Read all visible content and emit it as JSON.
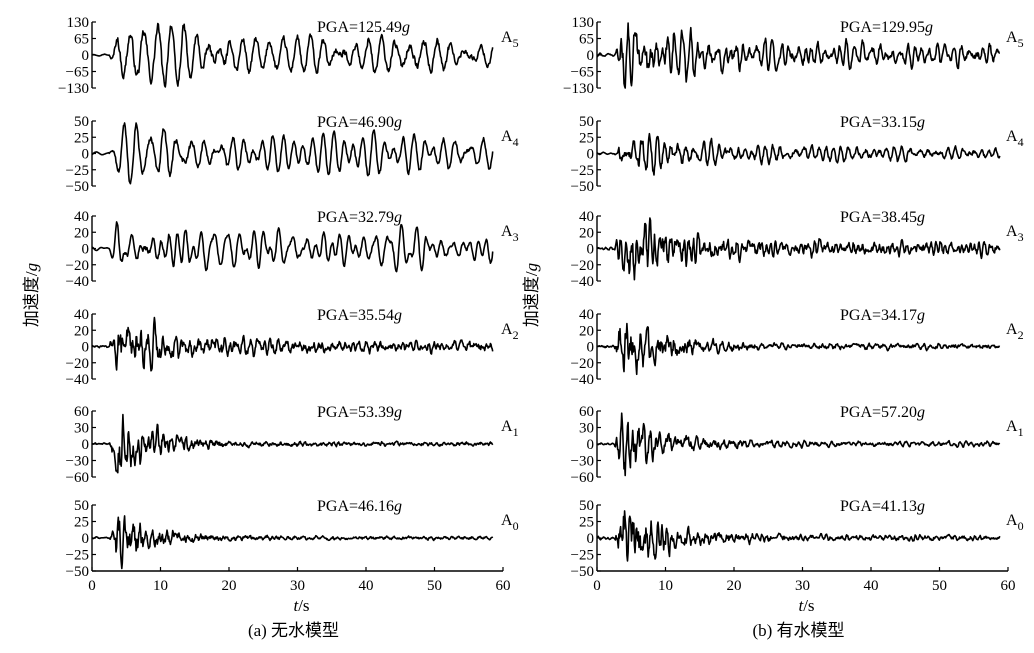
{
  "figure": {
    "y_axis_label": "加速度/g",
    "x_axis_label": "t/s"
  },
  "chart_data": [
    {
      "type": "line",
      "caption": "(a) 无水模型",
      "xlabel": "t/s",
      "ylabel": "加速度/g",
      "xlim": [
        0,
        60
      ],
      "x_ticks": [
        0,
        10,
        20,
        30,
        40,
        50,
        60
      ],
      "x_tick_labels": [
        "0",
        "10",
        "20",
        "30",
        "40",
        "50",
        "60"
      ],
      "series": [
        {
          "name": "A5",
          "pga_label": "PGA=125.49g",
          "ylim": [
            -130,
            130
          ],
          "y_ticks": [
            130,
            65,
            0,
            -65,
            -130
          ],
          "y_tick_labels": [
            "130",
            "65",
            "0",
            "−65",
            "−130"
          ],
          "duration": 58.5,
          "amplitude": 125.49,
          "style": "lowfreq"
        },
        {
          "name": "A4",
          "pga_label": "PGA=46.90g",
          "ylim": [
            -50,
            50
          ],
          "y_ticks": [
            50,
            25,
            0,
            -25,
            -50
          ],
          "y_tick_labels": [
            "50",
            "25",
            "0",
            "−25",
            "−50"
          ],
          "duration": 58.5,
          "amplitude": 46.9,
          "style": "lowfreq"
        },
        {
          "name": "A3",
          "pga_label": "PGA=32.79g",
          "ylim": [
            -40,
            40
          ],
          "y_ticks": [
            40,
            20,
            0,
            -20,
            -40
          ],
          "y_tick_labels": [
            "40",
            "20",
            "0",
            "−20",
            "−40"
          ],
          "duration": 58.5,
          "amplitude": 32.79,
          "style": "lowfreq"
        },
        {
          "name": "A2",
          "pga_label": "PGA=35.54g",
          "ylim": [
            -40,
            40
          ],
          "y_ticks": [
            40,
            20,
            0,
            -20,
            -40
          ],
          "y_tick_labels": [
            "40",
            "20",
            "0",
            "−20",
            "−40"
          ],
          "duration": 58.5,
          "amplitude": 35.54,
          "style": "mid"
        },
        {
          "name": "A1",
          "pga_label": "PGA=53.39g",
          "ylim": [
            -60,
            60
          ],
          "y_ticks": [
            60,
            30,
            0,
            -30,
            -60
          ],
          "y_tick_labels": [
            "60",
            "30",
            "0",
            "−30",
            "−60"
          ],
          "duration": 58.5,
          "amplitude": 53.39,
          "style": "base"
        },
        {
          "name": "A0",
          "pga_label": "PGA=46.16g",
          "ylim": [
            -50,
            50
          ],
          "y_ticks": [
            50,
            25,
            0,
            -25,
            -50
          ],
          "y_tick_labels": [
            "50",
            "25",
            "0",
            "−25",
            "−50"
          ],
          "duration": 58.5,
          "amplitude": 46.16,
          "style": "base"
        }
      ]
    },
    {
      "type": "line",
      "caption": "(b) 有水模型",
      "xlabel": "t/s",
      "ylabel": "加速度/g",
      "xlim": [
        0,
        60
      ],
      "x_ticks": [
        0,
        10,
        20,
        30,
        40,
        50,
        60
      ],
      "x_tick_labels": [
        "0",
        "10",
        "20",
        "30",
        "40",
        "50",
        "60"
      ],
      "series": [
        {
          "name": "A5",
          "pga_label": "PGA=129.95g",
          "ylim": [
            -130,
            130
          ],
          "y_ticks": [
            130,
            65,
            0,
            -65,
            -130
          ],
          "y_tick_labels": [
            "130",
            "65",
            "0",
            "−65",
            "−130"
          ],
          "duration": 58.8,
          "amplitude": 129.95,
          "style": "decay"
        },
        {
          "name": "A4",
          "pga_label": "PGA=33.15g",
          "ylim": [
            -50,
            50
          ],
          "y_ticks": [
            50,
            25,
            0,
            -25,
            -50
          ],
          "y_tick_labels": [
            "50",
            "25",
            "0",
            "−25",
            "−50"
          ],
          "duration": 58.8,
          "amplitude": 33.15,
          "style": "decay"
        },
        {
          "name": "A3",
          "pga_label": "PGA=38.45g",
          "ylim": [
            -40,
            40
          ],
          "y_ticks": [
            40,
            20,
            0,
            -20,
            -40
          ],
          "y_tick_labels": [
            "40",
            "20",
            "0",
            "−20",
            "−40"
          ],
          "duration": 58.8,
          "amplitude": 38.45,
          "style": "mid"
        },
        {
          "name": "A2",
          "pga_label": "PGA=34.17g",
          "ylim": [
            -40,
            40
          ],
          "y_ticks": [
            40,
            20,
            0,
            -20,
            -40
          ],
          "y_tick_labels": [
            "40",
            "20",
            "0",
            "−20",
            "−40"
          ],
          "duration": 58.8,
          "amplitude": 34.17,
          "style": "base"
        },
        {
          "name": "A1",
          "pga_label": "PGA=57.20g",
          "ylim": [
            -60,
            60
          ],
          "y_ticks": [
            60,
            30,
            0,
            -30,
            -60
          ],
          "y_tick_labels": [
            "60",
            "30",
            "0",
            "−30",
            "−60"
          ],
          "duration": 58.8,
          "amplitude": 57.2,
          "style": "base"
        },
        {
          "name": "A0",
          "pga_label": "PGA=41.13g",
          "ylim": [
            -50,
            50
          ],
          "y_ticks": [
            50,
            25,
            0,
            -25,
            -50
          ],
          "y_tick_labels": [
            "50",
            "25",
            "0",
            "−25",
            "−50"
          ],
          "duration": 58.8,
          "amplitude": 41.13,
          "style": "base"
        }
      ]
    }
  ]
}
